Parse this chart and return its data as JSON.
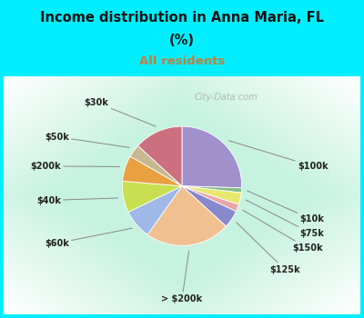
{
  "title_line1": "Income distribution in Anna Maria, FL",
  "title_line2": "(%)",
  "subtitle": "All residents",
  "title_color": "#111111",
  "subtitle_color": "#c08040",
  "bg_cyan": "#00eeff",
  "slices": [
    {
      "label": "$100k",
      "value": 25.5,
      "color": "#a090cc"
    },
    {
      "label": "$10k",
      "value": 1.3,
      "color": "#88bb88"
    },
    {
      "label": "$75k",
      "value": 3.2,
      "color": "#e8e870"
    },
    {
      "label": "$150k",
      "value": 2.0,
      "color": "#e8a8a8"
    },
    {
      "label": "$125k",
      "value": 4.8,
      "color": "#8888cc"
    },
    {
      "label": "> $200k",
      "value": 23.0,
      "color": "#f0c090"
    },
    {
      "label": "$60k",
      "value": 8.0,
      "color": "#a0b8e8"
    },
    {
      "label": "$40k",
      "value": 8.5,
      "color": "#c8e050"
    },
    {
      "label": "$200k",
      "value": 7.0,
      "color": "#e8a040"
    },
    {
      "label": "$50k",
      "value": 3.5,
      "color": "#c8b890"
    },
    {
      "label": "$30k",
      "value": 13.2,
      "color": "#cc7080"
    }
  ],
  "watermark": "City-Data.com"
}
